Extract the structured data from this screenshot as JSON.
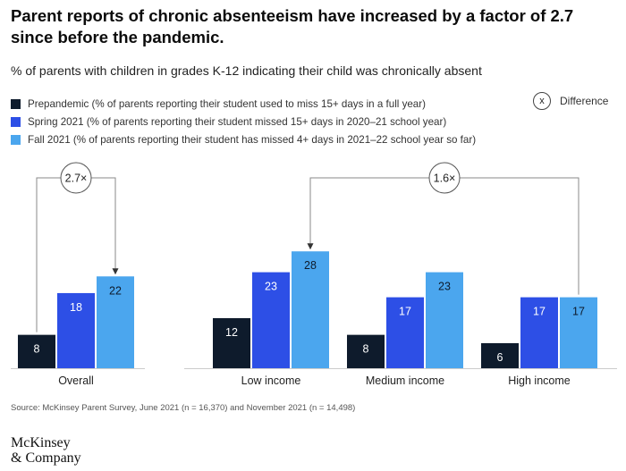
{
  "title": "Parent reports of chronic absenteeism have increased by a factor of 2.7 since before the pandemic.",
  "subtitle": "% of parents with children in grades K-12 indicating their child was chronically absent",
  "legend": {
    "items": [
      {
        "label": "Prepandemic (% of parents reporting their student used to miss 15+ days in a full year)",
        "color": "#0e1b2c"
      },
      {
        "label": "Spring 2021 (% of parents reporting their student missed 15+ days in 2020–21 school year)",
        "color": "#2d4fe6"
      },
      {
        "label": "Fall 2021 (% of parents reporting their student has missed 4+ days in 2021–22 school year so far)",
        "color": "#4ba6ee"
      }
    ],
    "difference_symbol": "x",
    "difference_label": "Difference"
  },
  "chart_data": {
    "type": "bar",
    "categories": [
      "Overall",
      "Low income",
      "Medium income",
      "High income"
    ],
    "series": [
      {
        "name": "Prepandemic",
        "values": [
          8,
          12,
          8,
          6
        ]
      },
      {
        "name": "Spring 2021",
        "values": [
          18,
          23,
          17,
          17
        ]
      },
      {
        "name": "Fall 2021",
        "values": [
          22,
          28,
          23,
          17
        ]
      }
    ],
    "colors": [
      "#0e1b2c",
      "#2d4fe6",
      "#4ba6ee"
    ],
    "ylim": [
      0,
      30
    ],
    "annotations": [
      {
        "text": "2.7×",
        "from": "Overall / Prepandemic",
        "to": "Overall / Fall 2021"
      },
      {
        "text": "1.6×",
        "from": "High income / Fall 2021",
        "to": "Low income / Fall 2021"
      }
    ],
    "grid": false
  },
  "source": "Source: McKinsey Parent Survey, June 2021 (n = 16,370) and November 2021 (n = 14,498)",
  "logo": {
    "line1": "McKinsey",
    "line2": "& Company"
  }
}
